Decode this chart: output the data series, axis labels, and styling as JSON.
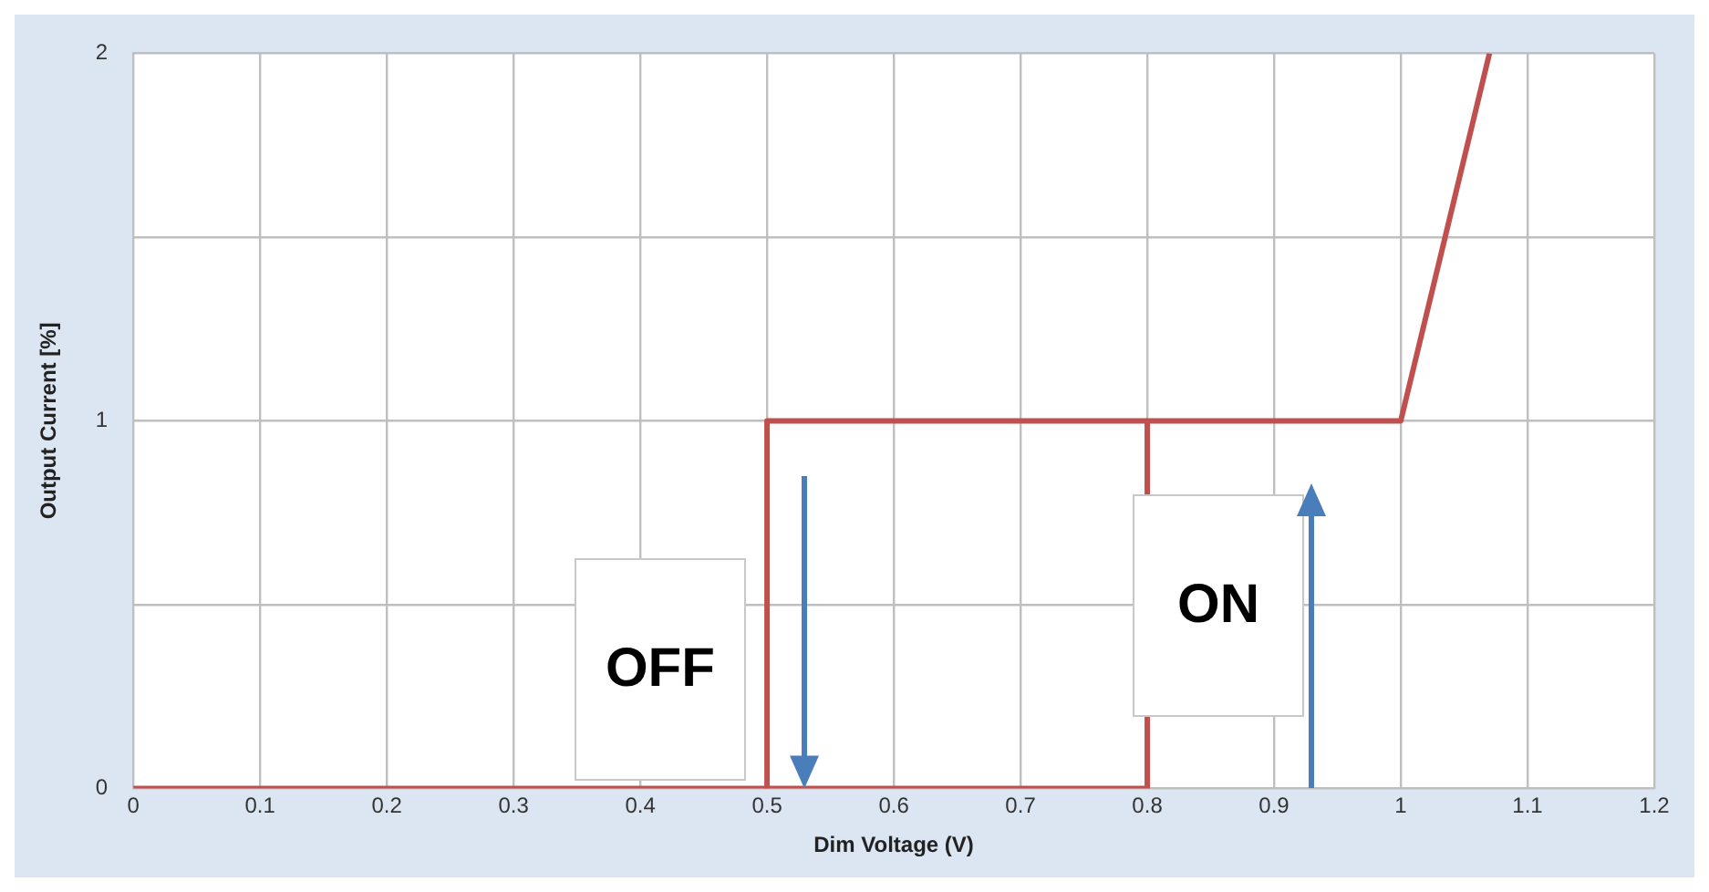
{
  "chart_data": {
    "type": "line",
    "xlabel": "Dim Voltage (V)",
    "ylabel": "Output Current [%]",
    "series": [
      {
        "color": "#c0504d",
        "x": [
          0,
          0.8,
          0.8,
          1,
          1.07
        ],
        "values": [
          0,
          0,
          1,
          1,
          2
        ]
      },
      {
        "color": "#c0504d",
        "x": [
          0.5,
          0.5,
          0.8
        ],
        "values": [
          0,
          1,
          1
        ]
      }
    ],
    "xlim": [
      0,
      1.2
    ],
    "xticks": [
      0,
      0.1,
      0.2,
      0.3,
      0.4,
      0.5,
      0.6,
      0.7,
      0.8,
      0.9,
      1,
      1.1,
      1.2
    ],
    "ylim": [
      0,
      2
    ],
    "yticks": [
      0,
      {
        "value": 0.5,
        "label": null
      },
      1,
      {
        "value": 1.5,
        "label": null
      },
      2
    ],
    "grid": true,
    "legend": false,
    "marker": "none",
    "line_style": "solid",
    "annotations": [
      "OFF",
      "ON"
    ]
  }
}
